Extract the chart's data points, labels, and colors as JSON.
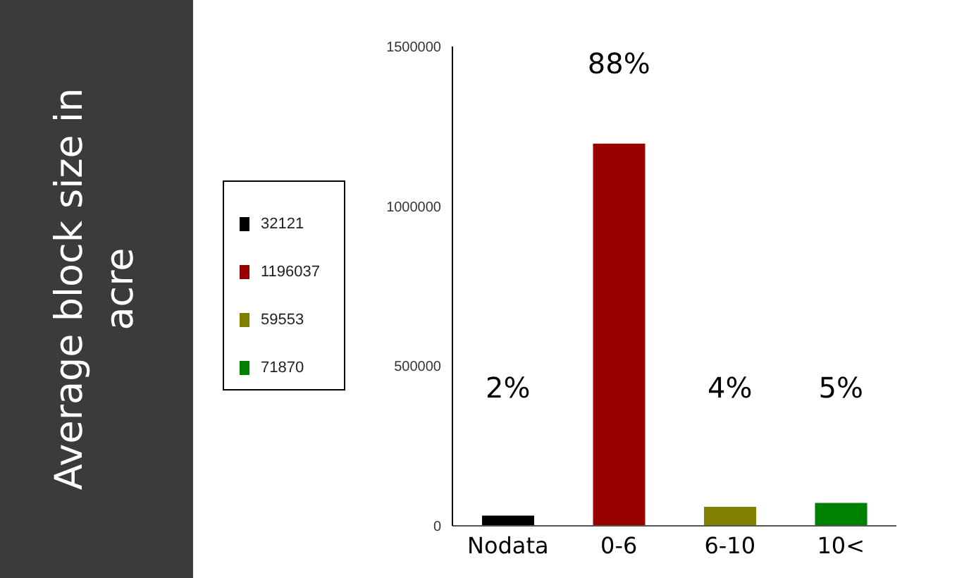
{
  "chart_data": {
    "type": "bar",
    "categories": [
      "Nodata",
      "0-6",
      "6-10",
      "10<"
    ],
    "stacked": true,
    "series": [
      {
        "name": "32121",
        "color": "#000000",
        "values": [
          32121,
          null,
          null,
          null
        ]
      },
      {
        "name": "1196037",
        "color": "#990000",
        "values": [
          null,
          1196037,
          null,
          null
        ]
      },
      {
        "name": "59553",
        "color": "#808000",
        "values": [
          null,
          null,
          59553,
          null
        ]
      },
      {
        "name": "71870",
        "color": "#008000",
        "values": [
          null,
          null,
          null,
          71870
        ]
      }
    ],
    "annotations": [
      "Average block size in acre",
      "2%",
      "88%",
      "4%",
      "5%"
    ],
    "ylim": [
      0,
      1500000
    ],
    "yticks": [
      0,
      500000,
      1000000,
      1500000
    ],
    "grid": false,
    "legend": "left"
  }
}
